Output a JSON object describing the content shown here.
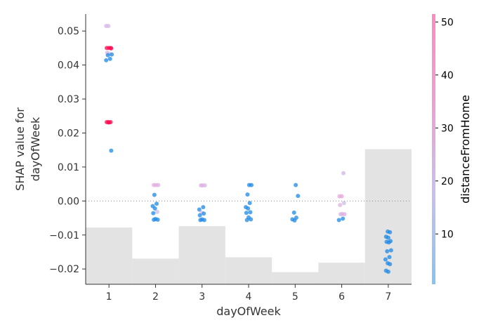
{
  "chart_data": {
    "type": "scatter",
    "title": "",
    "xlabel": "dayOfWeek",
    "ylabel_lines": [
      "SHAP value for",
      "dayOfWeek"
    ],
    "x_ticks": [
      1,
      2,
      3,
      4,
      5,
      6,
      7
    ],
    "x_tick_labels": [
      "1",
      "2",
      "3",
      "4",
      "5",
      "6",
      "7"
    ],
    "xlim": [
      0.5,
      7.5
    ],
    "y_ticks": [
      0.05,
      0.04,
      0.03,
      0.02,
      0.01,
      0.0,
      -0.01,
      -0.02
    ],
    "y_tick_labels": [
      "0.05",
      "0.04",
      "0.03",
      "0.02",
      "0.01",
      "0.00",
      "−0.01",
      "−0.02"
    ],
    "ylim": [
      -0.0245,
      0.055
    ],
    "zero_line": 0.0,
    "histogram": {
      "note_units": "relative bar height as a fraction of the y-range",
      "heights": [
        0.21,
        0.095,
        0.215,
        0.1,
        0.045,
        0.08,
        0.5
      ]
    },
    "colorbar": {
      "label": "distanceFromHome",
      "min": 0.5,
      "max": 51.5,
      "ticks": [
        10,
        20,
        30,
        40,
        50
      ],
      "tick_labels": [
        "10",
        "20",
        "30",
        "40",
        "50"
      ],
      "colors": [
        "#84c5f0",
        "#c9c0ec",
        "#ee9fd6",
        "#ff8ac0"
      ]
    },
    "points": [
      {
        "x": 1,
        "y": 0.0515,
        "c": 22
      },
      {
        "x": 1,
        "y": 0.0515,
        "c": 23
      },
      {
        "x": 1,
        "y": 0.045,
        "c": 50
      },
      {
        "x": 1,
        "y": 0.045,
        "c": 50
      },
      {
        "x": 1,
        "y": 0.045,
        "c": 49
      },
      {
        "x": 1,
        "y": 0.0449,
        "c": 48
      },
      {
        "x": 1,
        "y": 0.0436,
        "c": 24
      },
      {
        "x": 1,
        "y": 0.0433,
        "c": 18
      },
      {
        "x": 1,
        "y": 0.0431,
        "c": 3
      },
      {
        "x": 1,
        "y": 0.0429,
        "c": 2
      },
      {
        "x": 1,
        "y": 0.0418,
        "c": 2
      },
      {
        "x": 1,
        "y": 0.0414,
        "c": 9
      },
      {
        "x": 1,
        "y": 0.0232,
        "c": 50
      },
      {
        "x": 1,
        "y": 0.0232,
        "c": 50
      },
      {
        "x": 1,
        "y": 0.0232,
        "c": 49
      },
      {
        "x": 1,
        "y": 0.0231,
        "c": 48
      },
      {
        "x": 1,
        "y": 0.0148,
        "c": 7
      },
      {
        "x": 2,
        "y": 0.0047,
        "c": 30
      },
      {
        "x": 2,
        "y": 0.0047,
        "c": 28
      },
      {
        "x": 2,
        "y": 0.0047,
        "c": 26
      },
      {
        "x": 2,
        "y": 0.0018,
        "c": 8
      },
      {
        "x": 2,
        "y": -0.0008,
        "c": 5
      },
      {
        "x": 2,
        "y": -0.0015,
        "c": 4
      },
      {
        "x": 2,
        "y": -0.0022,
        "c": 3
      },
      {
        "x": 2,
        "y": -0.0032,
        "c": 20
      },
      {
        "x": 2,
        "y": -0.0036,
        "c": 2
      },
      {
        "x": 2,
        "y": -0.0053,
        "c": 2
      },
      {
        "x": 2,
        "y": -0.0055,
        "c": 1
      },
      {
        "x": 2,
        "y": -0.0055,
        "c": 2
      },
      {
        "x": 3,
        "y": 0.0046,
        "c": 24
      },
      {
        "x": 3,
        "y": 0.0046,
        "c": 22
      },
      {
        "x": 3,
        "y": 0.0046,
        "c": 26
      },
      {
        "x": 3,
        "y": -0.0018,
        "c": 5
      },
      {
        "x": 3,
        "y": -0.0025,
        "c": 4
      },
      {
        "x": 3,
        "y": -0.0034,
        "c": 20
      },
      {
        "x": 3,
        "y": -0.0037,
        "c": 2
      },
      {
        "x": 3,
        "y": -0.0042,
        "c": 3
      },
      {
        "x": 3,
        "y": -0.0054,
        "c": 1
      },
      {
        "x": 3,
        "y": -0.0056,
        "c": 2
      },
      {
        "x": 3,
        "y": -0.0056,
        "c": 1
      },
      {
        "x": 4,
        "y": 0.0047,
        "c": 7
      },
      {
        "x": 4,
        "y": 0.0047,
        "c": 8
      },
      {
        "x": 4,
        "y": 0.0019,
        "c": 6
      },
      {
        "x": 4,
        "y": -0.0006,
        "c": 5
      },
      {
        "x": 4,
        "y": -0.0018,
        "c": 2
      },
      {
        "x": 4,
        "y": -0.0022,
        "c": 1
      },
      {
        "x": 4,
        "y": -0.0033,
        "c": 2
      },
      {
        "x": 4,
        "y": -0.0035,
        "c": 3
      },
      {
        "x": 4,
        "y": -0.0048,
        "c": 4
      },
      {
        "x": 4,
        "y": -0.0054,
        "c": 1
      },
      {
        "x": 4,
        "y": -0.0056,
        "c": 2
      },
      {
        "x": 5,
        "y": 0.0047,
        "c": 2
      },
      {
        "x": 5,
        "y": 0.0015,
        "c": 4
      },
      {
        "x": 5,
        "y": -0.0034,
        "c": 5
      },
      {
        "x": 5,
        "y": -0.0049,
        "c": 6
      },
      {
        "x": 5,
        "y": -0.0054,
        "c": 7
      },
      {
        "x": 5,
        "y": -0.0057,
        "c": 8
      },
      {
        "x": 6,
        "y": 0.0082,
        "c": 22
      },
      {
        "x": 6,
        "y": 0.0014,
        "c": 30
      },
      {
        "x": 6,
        "y": 0.0014,
        "c": 32
      },
      {
        "x": 6,
        "y": -0.0006,
        "c": 20
      },
      {
        "x": 6,
        "y": -0.0012,
        "c": 26
      },
      {
        "x": 6,
        "y": -0.0038,
        "c": 23
      },
      {
        "x": 6,
        "y": -0.0039,
        "c": 28
      },
      {
        "x": 6,
        "y": -0.0039,
        "c": 24
      },
      {
        "x": 6,
        "y": -0.0052,
        "c": 4
      },
      {
        "x": 6,
        "y": -0.0056,
        "c": 6
      },
      {
        "x": 7,
        "y": -0.009,
        "c": 6
      },
      {
        "x": 7,
        "y": -0.0092,
        "c": 2
      },
      {
        "x": 7,
        "y": -0.0105,
        "c": 1
      },
      {
        "x": 7,
        "y": -0.0108,
        "c": 1
      },
      {
        "x": 7,
        "y": -0.0118,
        "c": 2
      },
      {
        "x": 7,
        "y": -0.012,
        "c": 1
      },
      {
        "x": 7,
        "y": -0.0122,
        "c": 1
      },
      {
        "x": 7,
        "y": -0.0145,
        "c": 1
      },
      {
        "x": 7,
        "y": -0.0148,
        "c": 2
      },
      {
        "x": 7,
        "y": -0.0165,
        "c": 7
      },
      {
        "x": 7,
        "y": -0.0172,
        "c": 5
      },
      {
        "x": 7,
        "y": -0.0183,
        "c": 1
      },
      {
        "x": 7,
        "y": -0.0186,
        "c": 1
      },
      {
        "x": 7,
        "y": -0.0205,
        "c": 4
      },
      {
        "x": 7,
        "y": -0.0208,
        "c": 5
      }
    ]
  }
}
